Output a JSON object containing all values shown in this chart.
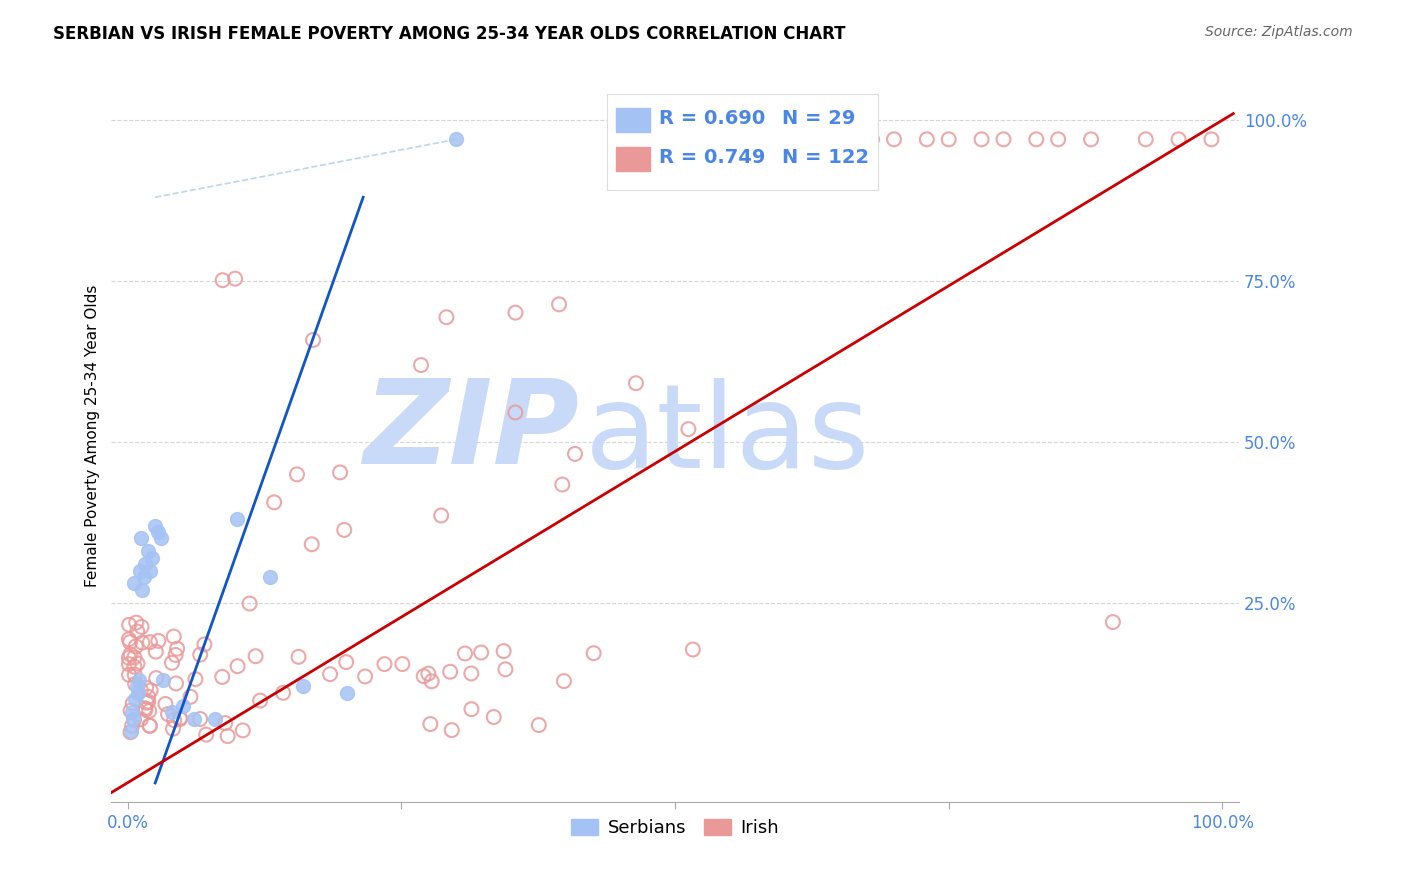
{
  "title": "SERBIAN VS IRISH FEMALE POVERTY AMONG 25-34 YEAR OLDS CORRELATION CHART",
  "source": "Source: ZipAtlas.com",
  "ylabel": "Female Poverty Among 25-34 Year Olds",
  "legend_serbian_R": "0.690",
  "legend_serbian_N": "29",
  "legend_irish_R": "0.749",
  "legend_irish_N": "122",
  "serbian_fill_color": "#a4c2f4",
  "serbian_edge_color": "#6d9eeb",
  "irish_fill_color": "#ea9999",
  "irish_edge_color": "#e06666",
  "serbian_line_color": "#1155cc",
  "irish_line_color": "#cc0000",
  "serbian_dash_color": "#9fc5e8",
  "tick_color": "#4a86e8",
  "watermark_zip": "ZIP",
  "watermark_atlas": "atlas",
  "watermark_color": "#c9daf8",
  "grid_color": "#cccccc",
  "title_fontsize": 12,
  "tick_fontsize": 12,
  "legend_fontsize": 14,
  "ylabel_fontsize": 11
}
